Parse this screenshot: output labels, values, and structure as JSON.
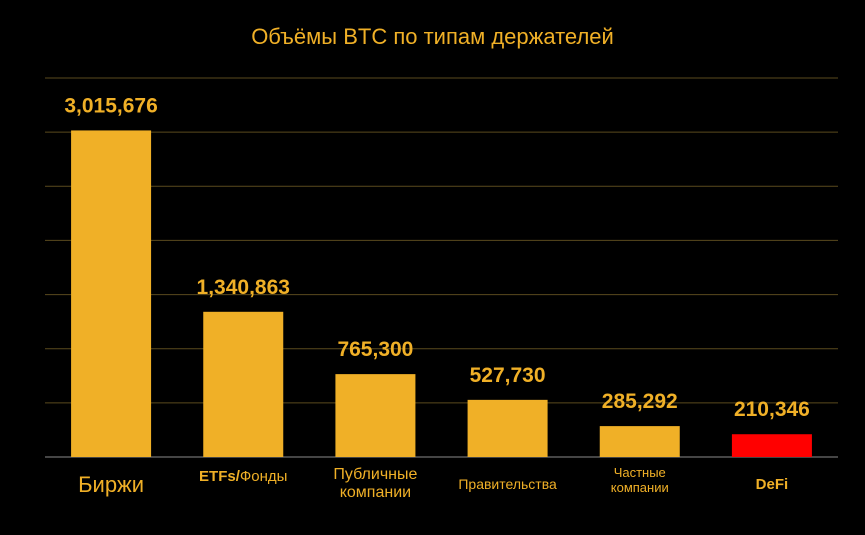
{
  "chart_data": {
    "type": "bar",
    "title": "Объёмы BTC по типам держателей",
    "categories": [
      "Биржи",
      "ETFs/Фонды",
      "Публичные компании",
      "Правительства",
      "Частные компании",
      "DeFi"
    ],
    "category_label_lines": [
      [
        "Биржи"
      ],
      [
        "ETFs/",
        "Фонды"
      ],
      [
        "Публичные",
        "компании"
      ],
      [
        "Правительства"
      ],
      [
        "Частные",
        "компании"
      ],
      [
        "DeFi"
      ]
    ],
    "values": [
      3015676,
      1340863,
      765300,
      527730,
      285292,
      210346
    ],
    "value_labels": [
      "3,015,676",
      "1,340,863",
      "765,300",
      "527,730",
      "285,292",
      "210,346"
    ],
    "bar_colors": [
      "#f0b027",
      "#f0b027",
      "#f0b027",
      "#f0b027",
      "#f0b027",
      "#ff0000"
    ],
    "ylim": [
      0,
      3500000
    ],
    "grid": true,
    "colors": {
      "background": "#000000",
      "accent": "#f0b027",
      "highlight": "#ff0000",
      "grid": "#5a4a1e"
    }
  }
}
